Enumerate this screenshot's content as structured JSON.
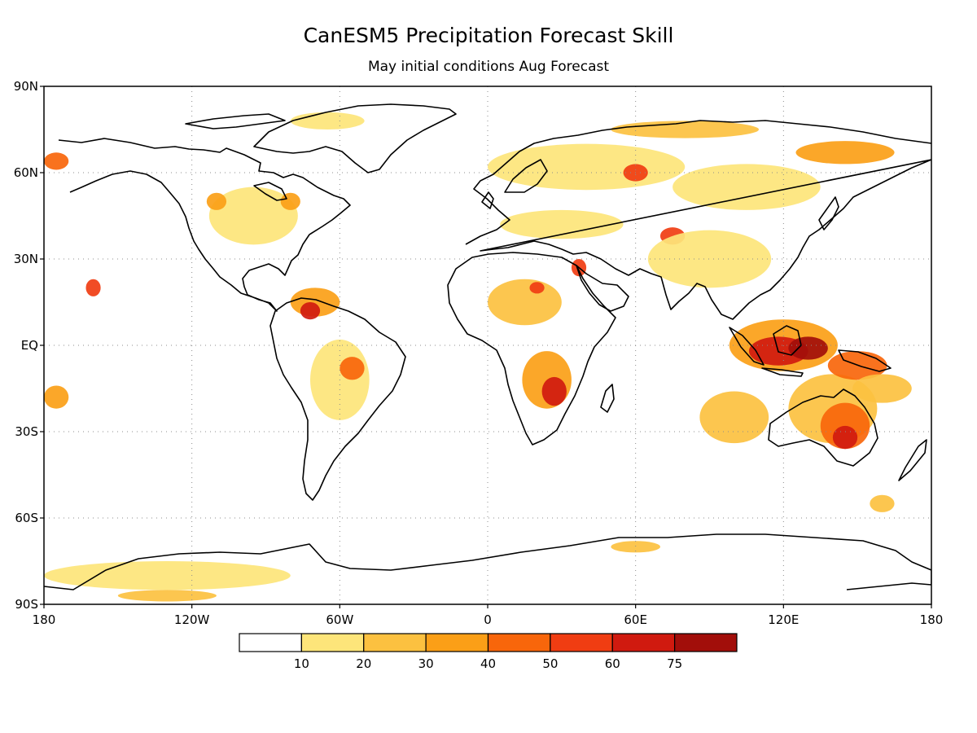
{
  "title": "CanESM5 Precipitation Forecast Skill",
  "subtitle": "May initial conditions  Aug Forecast",
  "lat_labels": [
    "90N",
    "60N",
    "30N",
    "EQ",
    "30S",
    "60S",
    "90S"
  ],
  "lon_labels": [
    "180",
    "120W",
    "60W",
    "0",
    "60E",
    "120E",
    "180"
  ],
  "legend": {
    "thresholds": [
      "10",
      "20",
      "30",
      "40",
      "50",
      "60",
      "75"
    ],
    "colors": [
      "#ffffff",
      "#fde57a",
      "#fcc140",
      "#fb9f17",
      "#f8660b",
      "#f03d12",
      "#d01a0f",
      "#a20e0a"
    ]
  },
  "grid_style": "dotted",
  "skill_regions": [
    {
      "lon": 100,
      "lat": -25,
      "rlon": 14,
      "rlat": 9,
      "level": 2
    },
    {
      "lon": 140,
      "lat": -22,
      "rlon": 18,
      "rlat": 12,
      "level": 2
    },
    {
      "lon": 145,
      "lat": -28,
      "rlon": 10,
      "rlat": 8,
      "level": 4
    },
    {
      "lon": 145,
      "lat": -32,
      "rlon": 5,
      "rlat": 4,
      "level": 6
    },
    {
      "lon": 120,
      "lat": 0,
      "rlon": 22,
      "rlat": 9,
      "level": 3
    },
    {
      "lon": 118,
      "lat": -2,
      "rlon": 12,
      "rlat": 5,
      "level": 6
    },
    {
      "lon": 130,
      "lat": -1,
      "rlon": 8,
      "rlat": 4,
      "level": 7
    },
    {
      "lon": 150,
      "lat": -7,
      "rlon": 12,
      "rlat": 5,
      "level": 4
    },
    {
      "lon": 160,
      "lat": -15,
      "rlon": 12,
      "rlat": 5,
      "level": 2
    },
    {
      "lon": 24,
      "lat": -12,
      "rlon": 10,
      "rlat": 10,
      "level": 3
    },
    {
      "lon": 27,
      "lat": -16,
      "rlon": 5,
      "rlat": 5,
      "level": 6
    },
    {
      "lon": 15,
      "lat": 15,
      "rlon": 15,
      "rlat": 8,
      "level": 2
    },
    {
      "lon": 20,
      "lat": 20,
      "rlon": 3,
      "rlat": 2,
      "level": 5
    },
    {
      "lon": 37,
      "lat": 27,
      "rlon": 3,
      "rlat": 3,
      "level": 5
    },
    {
      "lon": 75,
      "lat": 38,
      "rlon": 5,
      "rlat": 3,
      "level": 5
    },
    {
      "lon": -70,
      "lat": 15,
      "rlon": 10,
      "rlat": 5,
      "level": 3
    },
    {
      "lon": -72,
      "lat": 12,
      "rlon": 4,
      "rlat": 3,
      "level": 6
    },
    {
      "lon": -60,
      "lat": -12,
      "rlon": 12,
      "rlat": 14,
      "level": 1
    },
    {
      "lon": -55,
      "lat": -8,
      "rlon": 5,
      "rlat": 4,
      "level": 4
    },
    {
      "lon": -95,
      "lat": 45,
      "rlon": 18,
      "rlat": 10,
      "level": 1
    },
    {
      "lon": -80,
      "lat": 50,
      "rlon": 4,
      "rlat": 3,
      "level": 3
    },
    {
      "lon": -110,
      "lat": 50,
      "rlon": 4,
      "rlat": 3,
      "level": 3
    },
    {
      "lon": -160,
      "lat": 20,
      "rlon": 3,
      "rlat": 3,
      "level": 5
    },
    {
      "lon": -175,
      "lat": 64,
      "rlon": 5,
      "rlat": 3,
      "level": 4
    },
    {
      "lon": -175,
      "lat": -18,
      "rlon": 5,
      "rlat": 4,
      "level": 3
    },
    {
      "lon": 40,
      "lat": 62,
      "rlon": 40,
      "rlat": 8,
      "level": 1
    },
    {
      "lon": 60,
      "lat": 60,
      "rlon": 5,
      "rlat": 3,
      "level": 5
    },
    {
      "lon": 105,
      "lat": 55,
      "rlon": 30,
      "rlat": 8,
      "level": 1
    },
    {
      "lon": 145,
      "lat": 67,
      "rlon": 20,
      "rlat": 4,
      "level": 3
    },
    {
      "lon": 80,
      "lat": 75,
      "rlon": 30,
      "rlat": 3,
      "level": 2
    },
    {
      "lon": -65,
      "lat": 78,
      "rlon": 15,
      "rlat": 3,
      "level": 1
    },
    {
      "lon": 90,
      "lat": 30,
      "rlon": 25,
      "rlat": 10,
      "level": 1
    },
    {
      "lon": 30,
      "lat": 42,
      "rlon": 25,
      "rlat": 5,
      "level": 1
    },
    {
      "lon": -130,
      "lat": -80,
      "rlon": 50,
      "rlat": 5,
      "level": 1
    },
    {
      "lon": -130,
      "lat": -87,
      "rlon": 20,
      "rlat": 2,
      "level": 2
    },
    {
      "lon": 60,
      "lat": -70,
      "rlon": 10,
      "rlat": 2,
      "level": 2
    },
    {
      "lon": 160,
      "lat": -55,
      "rlon": 5,
      "rlat": 3,
      "level": 2
    }
  ]
}
